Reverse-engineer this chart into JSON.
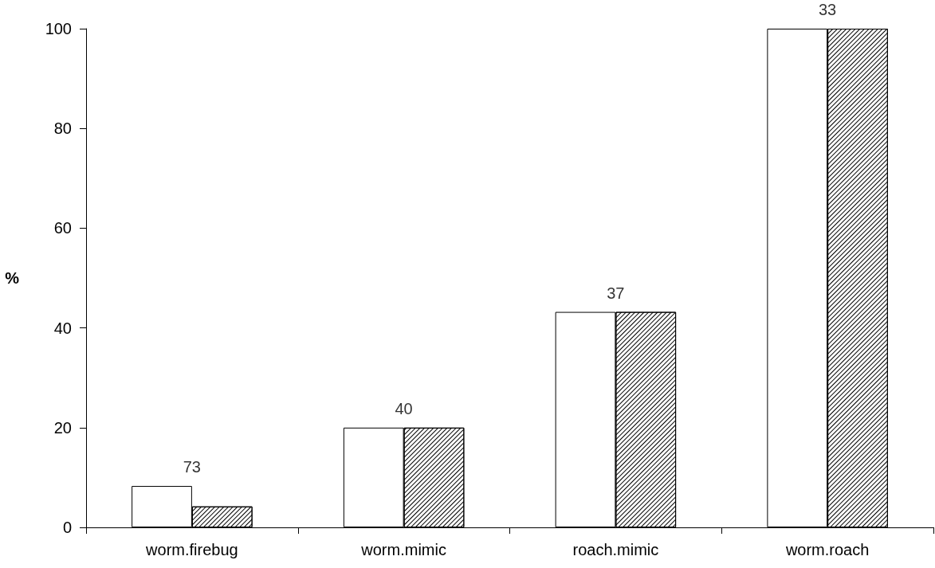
{
  "chart_data": {
    "type": "bar",
    "ylabel": "%",
    "categories": [
      "worm.firebug",
      "worm.mimic",
      "roach.mimic",
      "worm.roach"
    ],
    "series": [
      {
        "color": "#ffffff",
        "values": [
          8.3,
          20,
          43.2,
          100
        ]
      },
      {
        "color": "#000000",
        "values": [
          4.2,
          20,
          43.2,
          100
        ]
      }
    ],
    "ylim": [
      0,
      100
    ],
    "yticks": [
      0,
      20,
      40,
      60,
      80,
      100
    ],
    "grid": false,
    "annotations": [
      "73",
      "40",
      "37",
      "33"
    ]
  }
}
